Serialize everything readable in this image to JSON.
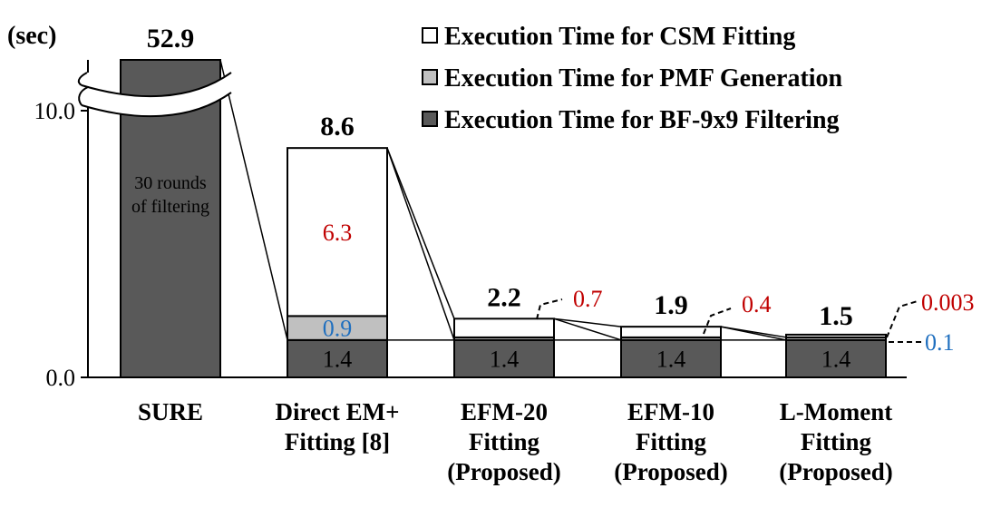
{
  "chart_data": {
    "type": "bar",
    "stacked": true,
    "y_unit_label": "(sec)",
    "y_ticks": [
      {
        "value": 0,
        "label": "0.0"
      },
      {
        "value": 10,
        "label": "10.0"
      }
    ],
    "ylim": [
      0,
      12
    ],
    "axis_break": true,
    "legend_position": "top-right",
    "categories": [
      [
        "SURE"
      ],
      [
        "Direct EM+",
        "Fitting [8]"
      ],
      [
        "EFM-20",
        "Fitting",
        "(Proposed)"
      ],
      [
        "EFM-10",
        "Fitting",
        "(Proposed)"
      ],
      [
        "L-Moment",
        "Fitting",
        "(Proposed)"
      ]
    ],
    "series": [
      {
        "name": "Execution Time for BF-9x9 Filtering",
        "color": "#595959",
        "values": [
          52.9,
          1.4,
          1.4,
          1.4,
          1.4
        ]
      },
      {
        "name": "Execution Time for PMF Generation",
        "color": "#c0c0c0",
        "values": [
          0,
          0.9,
          0.1,
          0.1,
          0.1
        ]
      },
      {
        "name": "Execution Time for CSM Fitting",
        "color": "#ffffff",
        "values": [
          0,
          6.3,
          0.7,
          0.4,
          0.003
        ]
      }
    ],
    "legend_order": [
      2,
      1,
      0
    ],
    "totals": [
      "52.9",
      "8.6",
      "2.2",
      "1.9",
      "1.5"
    ],
    "segment_labels": [
      {
        "bar": 1,
        "series": 0,
        "text": "1.4",
        "color": "#000000",
        "placement": "inside"
      },
      {
        "bar": 1,
        "series": 1,
        "text": "0.9",
        "color": "#1f6fbf",
        "placement": "inside"
      },
      {
        "bar": 1,
        "series": 2,
        "text": "6.3",
        "color": "#c00000",
        "placement": "inside"
      },
      {
        "bar": 2,
        "series": 0,
        "text": "1.4",
        "color": "#000000",
        "placement": "inside"
      },
      {
        "bar": 2,
        "series": 2,
        "text": "0.7",
        "color": "#c00000",
        "placement": "callout"
      },
      {
        "bar": 3,
        "series": 0,
        "text": "1.4",
        "color": "#000000",
        "placement": "inside"
      },
      {
        "bar": 3,
        "series": 2,
        "text": "0.4",
        "color": "#c00000",
        "placement": "callout"
      },
      {
        "bar": 4,
        "series": 0,
        "text": "1.4",
        "color": "#000000",
        "placement": "inside"
      },
      {
        "bar": 4,
        "series": 2,
        "text": "0.003",
        "color": "#c00000",
        "placement": "callout"
      },
      {
        "bar": 4,
        "series": 1,
        "text": "0.1",
        "color": "#1f6fbf",
        "placement": "callout"
      }
    ],
    "annotation": [
      "30 rounds",
      "of filtering"
    ]
  }
}
